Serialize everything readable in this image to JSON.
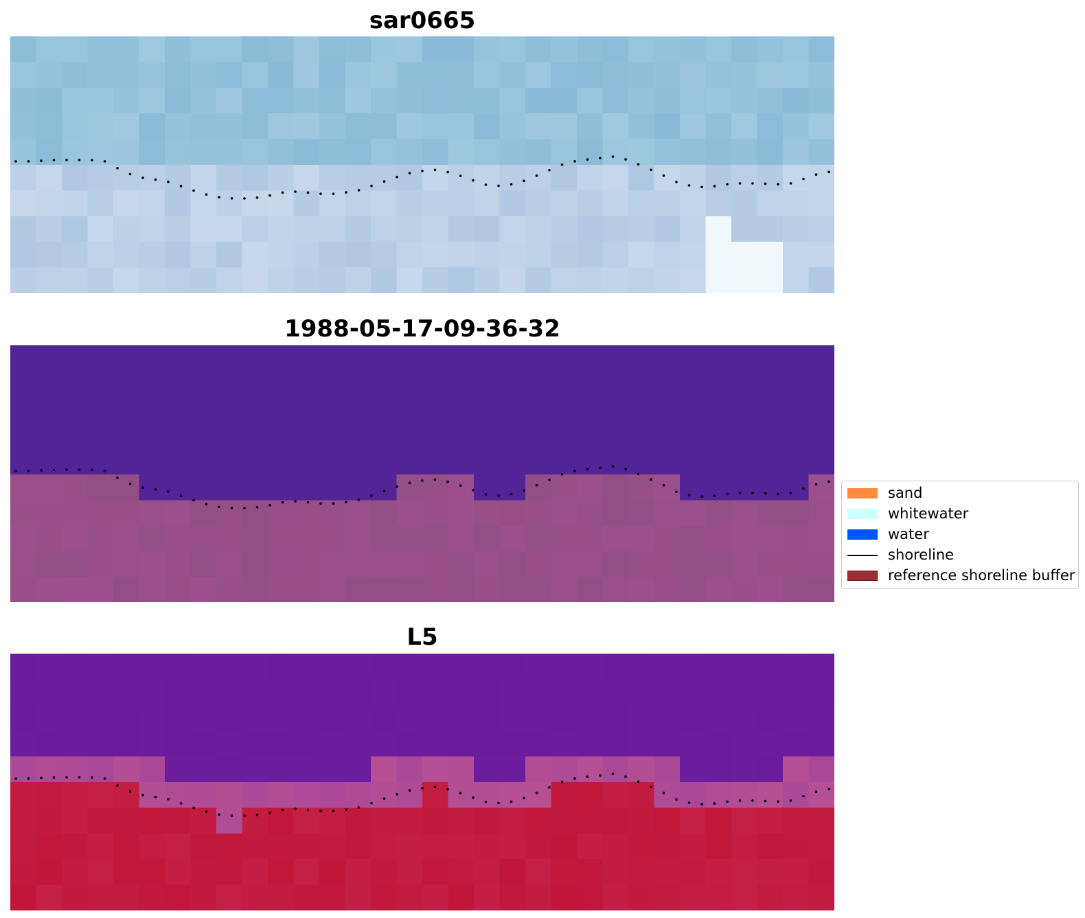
{
  "panels": [
    {
      "title": "sar0665",
      "kind": "rgb"
    },
    {
      "title": "1988-05-17-09-36-32",
      "kind": "classified"
    },
    {
      "title": "L5",
      "kind": "index"
    }
  ],
  "legend": [
    {
      "label": "sand",
      "type": "patch",
      "color": "#ff8c3d"
    },
    {
      "label": "whitewater",
      "type": "patch",
      "color": "#ccffff"
    },
    {
      "label": "water",
      "type": "patch",
      "color": "#0055ff"
    },
    {
      "label": "shoreline",
      "type": "line",
      "color": "#000000"
    },
    {
      "label": "reference shoreline buffer",
      "type": "patch",
      "color": "#9b2d33",
      "edge": "#6b1a1f"
    }
  ],
  "colors": {
    "classified_water": "#532497",
    "classified_land": "#9c4f8c",
    "index_water": "#6a1c9c",
    "index_land": "#c0163a",
    "buffer_band": "#b75093",
    "shoreline": "#000000"
  }
}
